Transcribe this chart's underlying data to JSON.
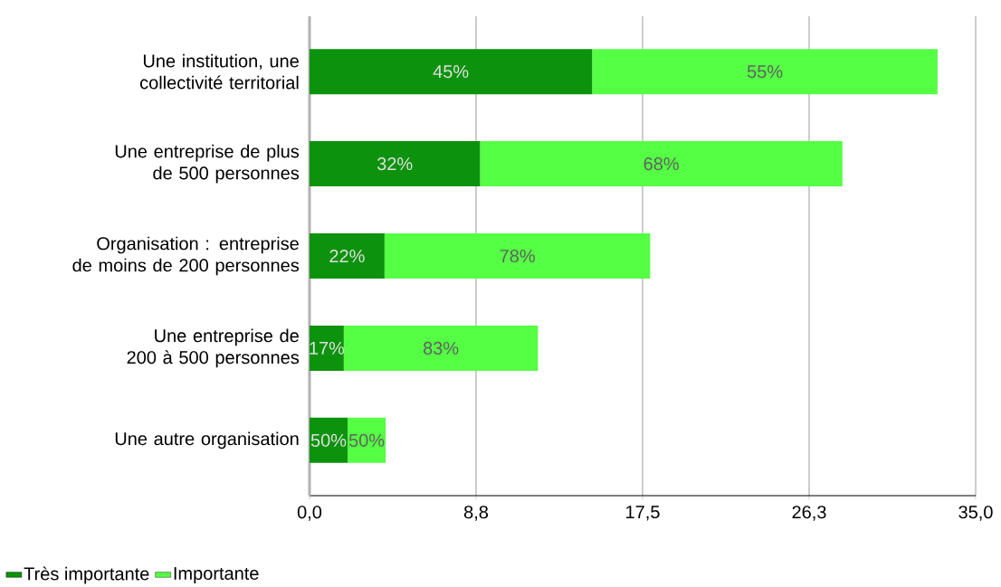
{
  "chart_data": {
    "type": "bar",
    "orientation": "horizontal",
    "stacked": true,
    "categories": [
      "Une institution, une collectivité territorial",
      "Une entreprise de plus de 500 personnes",
      "Organisation : entreprise de moins de 200 personnes",
      "Une entreprise de 200 à 500 personnes",
      "Une autre organisation"
    ],
    "series": [
      {
        "name": "Très importante",
        "color": "#0c920c",
        "values": [
          14.85,
          8.96,
          3.94,
          1.8,
          2.0
        ]
      },
      {
        "name": "Importante",
        "color": "#55ff44",
        "values": [
          18.15,
          19.04,
          13.96,
          10.2,
          2.0
        ]
      }
    ],
    "annotations": [
      "45%",
      "55%",
      "32%",
      "68%",
      "22%",
      "78%",
      "17%",
      "83%",
      "50%",
      "50%"
    ],
    "xlim": [
      0,
      35
    ],
    "xticks": [
      {
        "value": 0,
        "label": "0,0"
      },
      {
        "value": 8.75,
        "label": "8,8"
      },
      {
        "value": 17.5,
        "label": "17,5"
      },
      {
        "value": 26.25,
        "label": "26,3"
      },
      {
        "value": 35,
        "label": "35,0"
      }
    ],
    "grid": "x",
    "legend": "bottom"
  }
}
